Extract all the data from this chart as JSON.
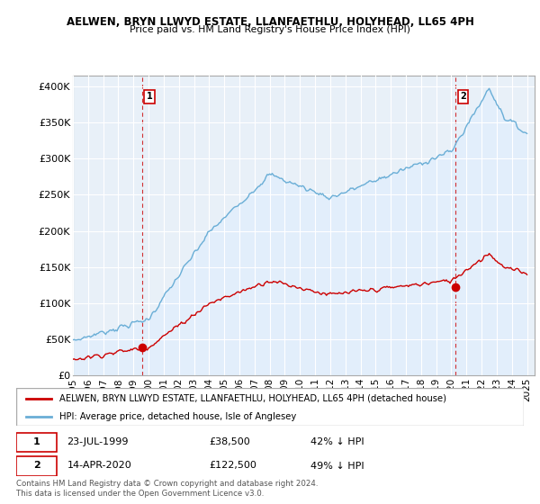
{
  "title": "AELWEN, BRYN LLWYD ESTATE, LLANFAETHLU, HOLYHEAD, LL65 4PH",
  "subtitle": "Price paid vs. HM Land Registry's House Price Index (HPI)",
  "ylabel_ticks": [
    "£0",
    "£50K",
    "£100K",
    "£150K",
    "£200K",
    "£250K",
    "£300K",
    "£350K",
    "£400K"
  ],
  "ytick_values": [
    0,
    50000,
    100000,
    150000,
    200000,
    250000,
    300000,
    350000,
    400000
  ],
  "ylim": [
    0,
    415000
  ],
  "xlim_start": 1995.0,
  "xlim_end": 2025.5,
  "hpi_color": "#6aaed6",
  "hpi_fill_color": "#ddeeff",
  "price_color": "#cc0000",
  "sale1_x": 1999.55,
  "sale1_y": 38500,
  "sale2_x": 2020.28,
  "sale2_y": 122500,
  "sale1_date": "23-JUL-1999",
  "sale1_price": 38500,
  "sale1_label": "42% ↓ HPI",
  "sale2_date": "14-APR-2020",
  "sale2_price": 122500,
  "sale2_label": "49% ↓ HPI",
  "legend_line1": "AELWEN, BRYN LLWYD ESTATE, LLANFAETHLU, HOLYHEAD, LL65 4PH (detached house)",
  "legend_line2": "HPI: Average price, detached house, Isle of Anglesey",
  "footnote": "Contains HM Land Registry data © Crown copyright and database right 2024.\nThis data is licensed under the Open Government Licence v3.0.",
  "bg_color": "#ffffff",
  "plot_bg_color": "#e8f0f8",
  "grid_color": "#ffffff",
  "xtick_years": [
    1995,
    1996,
    1997,
    1998,
    1999,
    2000,
    2001,
    2002,
    2003,
    2004,
    2005,
    2006,
    2007,
    2008,
    2009,
    2010,
    2011,
    2012,
    2013,
    2014,
    2015,
    2016,
    2017,
    2018,
    2019,
    2020,
    2021,
    2022,
    2023,
    2024,
    2025
  ]
}
